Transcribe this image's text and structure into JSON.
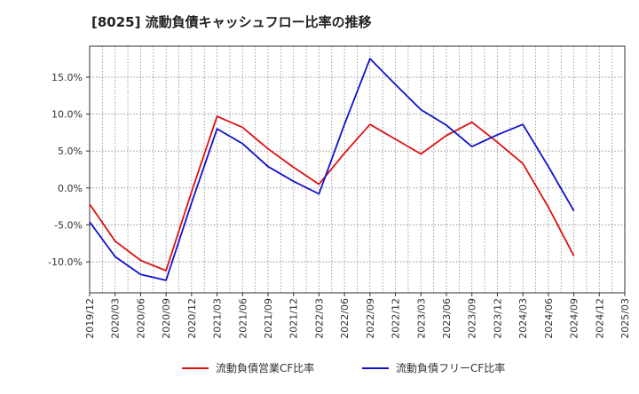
{
  "chart_data": {
    "type": "line",
    "title": "[8025]  流動負債キャッシュフロー比率の推移",
    "xlabel": "",
    "ylabel": "",
    "x": [
      "2019/12",
      "2020/03",
      "2020/06",
      "2020/09",
      "2020/12",
      "2021/03",
      "2021/06",
      "2021/09",
      "2021/12",
      "2022/03",
      "2022/06",
      "2022/09",
      "2022/12",
      "2023/03",
      "2023/06",
      "2023/09",
      "2023/12",
      "2024/03",
      "2024/06",
      "2024/09",
      "2024/12",
      "2025/03"
    ],
    "y_ticks": [
      "15.0%",
      "10.0%",
      "5.0%",
      "0.0%",
      "-5.0%",
      "-10.0%"
    ],
    "ylim": [
      -14.2,
      19.2
    ],
    "grid": true,
    "legend_position": "bottom",
    "series": [
      {
        "name": "流動負債営業CF比率",
        "color": "#dd1111",
        "values": [
          -2.2,
          -7.2,
          -9.8,
          -11.2,
          -0.5,
          9.7,
          8.2,
          5.3,
          2.8,
          0.5,
          4.7,
          8.6,
          6.6,
          4.6,
          7.1,
          8.9,
          6.2,
          3.3,
          -2.6,
          -9.2,
          null,
          null
        ]
      },
      {
        "name": "流動負債フリーCF比率",
        "color": "#1111cc",
        "values": [
          -4.6,
          -9.3,
          -11.7,
          -12.5,
          -2.0,
          8.0,
          6.0,
          2.9,
          0.9,
          -0.8,
          8.6,
          17.5,
          14.0,
          10.6,
          8.5,
          5.6,
          7.2,
          8.6,
          2.9,
          -3.1,
          null,
          null
        ]
      }
    ]
  }
}
